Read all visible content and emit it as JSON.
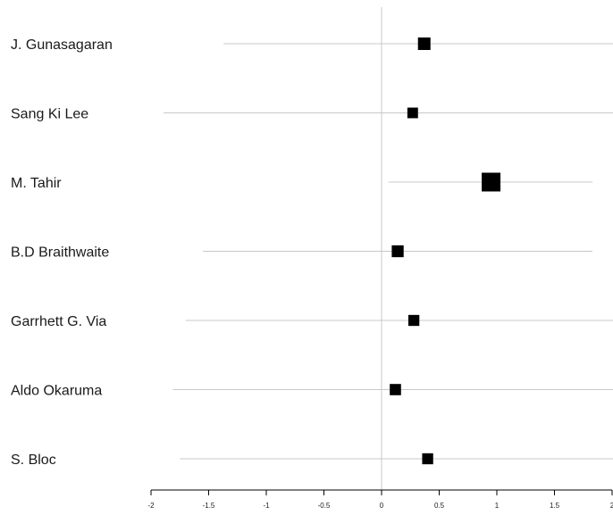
{
  "chart_data": {
    "type": "scatter",
    "subtype": "forest-plot",
    "title": "",
    "xlabel": "",
    "ylabel": "",
    "xlim": [
      -2,
      2
    ],
    "x_ticks": [
      -2,
      -1.5,
      -1,
      -0.5,
      0,
      0.5,
      1,
      1.5,
      2
    ],
    "x_tick_labels": [
      "-2",
      "-1.5",
      "-1",
      "-0.5",
      "0",
      "0.5",
      "1",
      "1.5",
      "2"
    ],
    "reference_line_x": 0,
    "grid": false,
    "legend": "none",
    "colors": {
      "marker": "#000000",
      "ci_line": "#c8c8c8",
      "reference_line": "#c8c8c8",
      "axis": "#000000"
    },
    "studies": [
      {
        "label": "J. Gunasagaran",
        "estimate": 0.37,
        "ci_lower": -1.37,
        "ci_upper": 2.12,
        "weight": 1.0
      },
      {
        "label": "Sang Ki Lee",
        "estimate": 0.27,
        "ci_lower": -1.89,
        "ci_upper": 2.43,
        "weight": 0.85
      },
      {
        "label": "M. Tahir",
        "estimate": 0.95,
        "ci_lower": 0.06,
        "ci_upper": 1.83,
        "weight": 1.5
      },
      {
        "label": "B.D Braithwaite",
        "estimate": 0.14,
        "ci_lower": -1.55,
        "ci_upper": 1.83,
        "weight": 0.95
      },
      {
        "label": "Garrhett G. Via",
        "estimate": 0.28,
        "ci_lower": -1.7,
        "ci_upper": 2.26,
        "weight": 0.88
      },
      {
        "label": "Aldo Okaruma",
        "estimate": 0.12,
        "ci_lower": -1.81,
        "ci_upper": 2.05,
        "weight": 0.9
      },
      {
        "label": "S. Bloc",
        "estimate": 0.4,
        "ci_lower": -1.75,
        "ci_upper": 2.55,
        "weight": 0.88
      }
    ]
  }
}
